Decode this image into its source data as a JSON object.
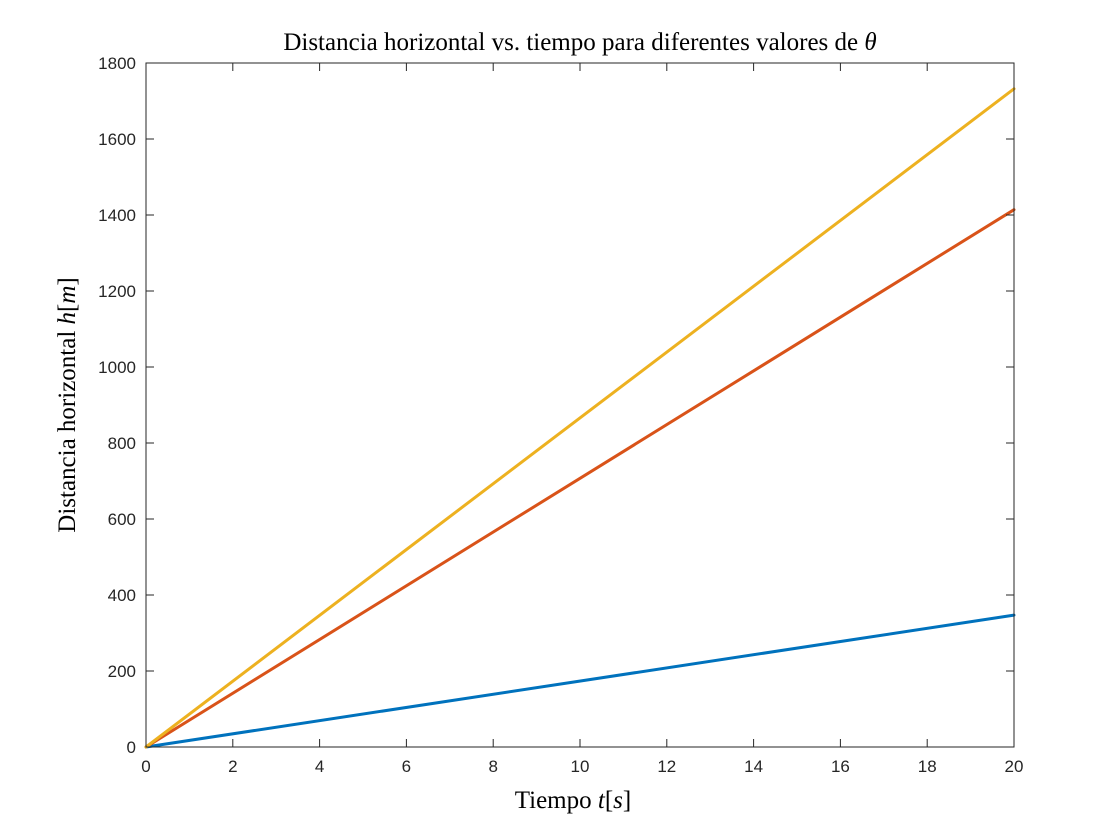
{
  "chart_data": {
    "type": "line",
    "title": {
      "text": "Distancia horizontal vs. tiempo para diferentes valores de ",
      "math": "θ"
    },
    "xlabel": {
      "text": "Tiempo ",
      "math_var": "t",
      "open": "[",
      "math_unit": "s",
      "close": "]"
    },
    "ylabel": {
      "text": "Distancia horizontal ",
      "math_var": "h",
      "open": "[",
      "math_unit": "m",
      "close": "]"
    },
    "xlim": [
      0,
      20
    ],
    "ylim": [
      0,
      1800
    ],
    "xticks": [
      0,
      2,
      4,
      6,
      8,
      10,
      12,
      14,
      16,
      18,
      20
    ],
    "yticks": [
      0,
      200,
      400,
      600,
      800,
      1000,
      1200,
      1400,
      1600,
      1800
    ],
    "grid": false,
    "box": true,
    "series": [
      {
        "x": [
          0,
          20
        ],
        "y": [
          0,
          347
        ],
        "color": "#0072BD"
      },
      {
        "x": [
          0,
          20
        ],
        "y": [
          0,
          1414
        ],
        "color": "#D95319"
      },
      {
        "x": [
          0,
          20
        ],
        "y": [
          0,
          1732
        ],
        "color": "#EDB120"
      }
    ]
  }
}
